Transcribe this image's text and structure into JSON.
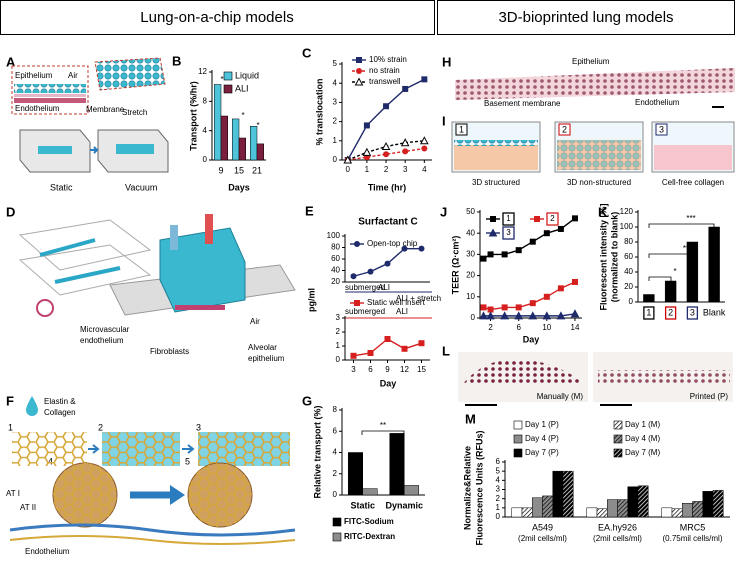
{
  "header": {
    "left": "Lung-on-a-chip models",
    "right": "3D-bioprinted lung models"
  },
  "panels": {
    "A": {
      "letter": "A",
      "labels": [
        "Epithelium",
        "Air",
        "Endothelium",
        "Membrane",
        "Stretch",
        "Static",
        "Vacuum"
      ]
    },
    "D": {
      "letter": "D",
      "labels": [
        [
          "Microvascular",
          "endothelium"
        ],
        [
          "Fibroblasts"
        ],
        [
          "Air"
        ],
        [
          "Alveolar",
          "epithelium"
        ]
      ]
    },
    "F": {
      "letter": "F",
      "source": [
        "Elastin &",
        "Collagen"
      ],
      "steps": [
        "1",
        "2",
        "3",
        "4",
        "5"
      ],
      "labels": [
        "AT I",
        "AT II",
        "Endothelium"
      ]
    },
    "H": {
      "letter": "H",
      "labels": [
        "Epithelium",
        "Basement membrane",
        "Endothelium"
      ]
    },
    "I": {
      "letter": "I",
      "boxes": [
        "1",
        "2",
        "3"
      ],
      "captions": [
        "3D structured",
        "3D non-structured",
        "Cell-free collagen"
      ]
    },
    "L": {
      "letter": "L",
      "labels": [
        "Manually (M)",
        "Printed (P)"
      ]
    }
  },
  "chart_data": [
    {
      "panel": "B",
      "type": "bar",
      "categories": [
        "9",
        "15",
        "21"
      ],
      "xlabel": "Days",
      "ylabel": "Transport (%/hr)",
      "ylim": [
        0,
        12
      ],
      "yticks": [
        0,
        4,
        8,
        12
      ],
      "series": [
        {
          "name": "Liquid",
          "color": "#4fc3d9",
          "values": [
            10.3,
            5.6,
            4.6
          ]
        },
        {
          "name": "ALI",
          "color": "#7a1f3d",
          "values": [
            6.0,
            3.0,
            2.2
          ]
        }
      ],
      "annotations": [
        "*",
        "*",
        "*"
      ]
    },
    {
      "panel": "C",
      "type": "line",
      "x": [
        0,
        1,
        2,
        3,
        4
      ],
      "xlim": [
        -0.3,
        4.4
      ],
      "xticks": [
        0,
        1,
        2,
        3,
        4
      ],
      "ylim": [
        0,
        5
      ],
      "yticks": [
        0,
        1,
        2,
        3,
        4,
        5
      ],
      "xlabel": "Time (hr)",
      "ylabel": "% translocation",
      "series": [
        {
          "name": "10% strain",
          "color": "#1f2a6b",
          "marker": "square",
          "dash": false,
          "values": [
            0,
            1.8,
            2.8,
            3.7,
            4.2
          ]
        },
        {
          "name": "no strain",
          "color": "#d62020",
          "marker": "circle",
          "dash": true,
          "values": [
            0,
            0.15,
            0.3,
            0.45,
            0.6
          ]
        },
        {
          "name": "transwell",
          "color": "#000000",
          "marker": "triangle-open",
          "dash": true,
          "values": [
            0,
            0.4,
            0.7,
            0.9,
            1.0
          ]
        }
      ]
    },
    {
      "panel": "E",
      "type": "line",
      "title": "Surfactant C",
      "x": [
        3,
        6,
        9,
        12,
        15
      ],
      "xlim": [
        1.5,
        16.5
      ],
      "ylim": [
        20,
        100
      ],
      "yticks": [
        20,
        40,
        60,
        80,
        100
      ],
      "ylabel": "pg/ml",
      "series": [
        {
          "name": "Open-top chip",
          "color": "#1f2a6b",
          "marker": "circle",
          "dash": false,
          "values": [
            30,
            38,
            52,
            78,
            78
          ]
        }
      ],
      "annotations": [
        "submerged",
        "ALI",
        "ALI + stretch"
      ]
    },
    {
      "type": "line",
      "x": [
        3,
        6,
        9,
        12,
        15
      ],
      "xlim": [
        1.5,
        16.5
      ],
      "xticks": [
        3,
        6,
        9,
        12,
        15
      ],
      "ylim": [
        0,
        3
      ],
      "yticks": [
        0,
        1,
        2,
        3
      ],
      "xlabel": "Day",
      "series": [
        {
          "name": "Static well insert",
          "color": "#d62020",
          "marker": "square",
          "dash": false,
          "values": [
            0.3,
            0.5,
            1.5,
            0.8,
            1.2
          ]
        }
      ],
      "annotations": [
        "submerged",
        "ALI"
      ]
    },
    {
      "panel": "G",
      "type": "bar",
      "categories": [
        "Static",
        "Dynamic"
      ],
      "ylim": [
        0,
        8
      ],
      "yticks": [
        0,
        2,
        4,
        6,
        8
      ],
      "ylabel": "Relative transport (%)",
      "series": [
        {
          "name": "FITC-Sodium",
          "color": "#000000",
          "values": [
            4.0,
            5.8
          ]
        },
        {
          "name": "RITC-Dextran",
          "color": "#8c8c8c",
          "values": [
            0.6,
            0.9
          ]
        }
      ],
      "annotations": [
        "**"
      ]
    },
    {
      "panel": "J",
      "type": "line",
      "x": [
        1,
        2,
        4,
        6,
        8,
        10,
        12,
        14
      ],
      "xlim": [
        0.5,
        15
      ],
      "xticks": [
        2,
        6,
        10,
        14
      ],
      "ylim": [
        0,
        50
      ],
      "yticks": [
        0,
        10,
        20,
        30,
        40,
        50
      ],
      "xlabel": "Day",
      "ylabel": "TEER (Ω·cm²)",
      "series": [
        {
          "name": "1",
          "color": "#000000",
          "marker": "square",
          "dash": false,
          "values": [
            28,
            30,
            30,
            32,
            36,
            40,
            42,
            47
          ]
        },
        {
          "name": "2",
          "color": "#d62020",
          "marker": "square",
          "dash": false,
          "values": [
            5,
            4,
            5,
            5,
            7,
            10,
            14,
            17
          ]
        },
        {
          "name": "3",
          "color": "#1f2a6b",
          "marker": "triangle",
          "dash": false,
          "values": [
            1,
            1,
            1,
            1,
            1,
            1,
            1,
            2
          ]
        }
      ]
    },
    {
      "panel": "K",
      "type": "bar",
      "categories": [
        "1",
        "2",
        "3",
        "Blank"
      ],
      "label_box_colors": [
        "#000000",
        "#cc0000",
        "#1f2a6b",
        "none"
      ],
      "color": "#000000",
      "values": [
        10,
        28,
        80,
        100
      ],
      "ylim": [
        0,
        120
      ],
      "yticks": [
        0,
        20,
        40,
        60,
        80,
        100,
        120
      ],
      "ylabel": [
        "Fluorescent intensity [%]",
        "(normalized to blank)"
      ],
      "annotations": [
        "*",
        "**",
        "***"
      ]
    },
    {
      "panel": "M",
      "type": "bar",
      "categories": [
        "A549",
        "EA.hy926",
        "MRC5"
      ],
      "category_subtitles": [
        "(2mil cells/ml)",
        "(2mil cells/ml)",
        "(0.75mil cells/ml)"
      ],
      "ylim": [
        0,
        6
      ],
      "yticks": [
        0,
        1,
        2,
        3,
        4,
        5,
        6
      ],
      "ylabel": [
        "Normalize&Relative",
        "Fluorescence Units (RFUs)"
      ],
      "series": [
        {
          "name": "Day 1 (P)",
          "color": "#ffffff",
          "hatch": false,
          "values": [
            1.0,
            1.0,
            1.0
          ]
        },
        {
          "name": "Day 1 (M)",
          "color": "#ffffff",
          "hatch": true,
          "values": [
            1.0,
            0.9,
            0.9
          ]
        },
        {
          "name": "Day 4 (P)",
          "color": "#8c8c8c",
          "hatch": false,
          "values": [
            2.1,
            1.9,
            1.5
          ]
        },
        {
          "name": "Day 4 (M)",
          "color": "#8c8c8c",
          "hatch": true,
          "values": [
            2.3,
            1.9,
            1.7
          ]
        },
        {
          "name": "Day 7 (P)",
          "color": "#000000",
          "hatch": false,
          "values": [
            5.0,
            3.3,
            2.8
          ]
        },
        {
          "name": "Day 7 (M)",
          "color": "#000000",
          "hatch": true,
          "values": [
            5.0,
            3.4,
            2.9
          ]
        }
      ]
    }
  ]
}
